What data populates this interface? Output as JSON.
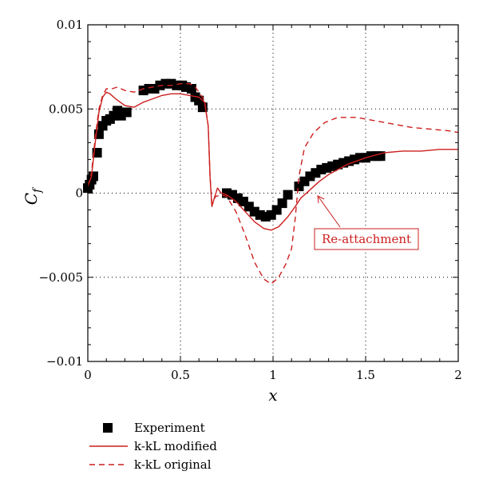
{
  "chart_data": {
    "type": "line",
    "xlabel": "x",
    "ylabel": "C",
    "ylabel_sub": "f",
    "xlim": [
      0,
      2
    ],
    "ylim": [
      -0.01,
      0.01
    ],
    "x_ticks": [
      0,
      0.5,
      1,
      1.5,
      2
    ],
    "x_tick_labels": [
      "0",
      "0.5",
      "1",
      "1.5",
      "2"
    ],
    "y_ticks": [
      -0.01,
      -0.005,
      0,
      0.005,
      0.01
    ],
    "y_tick_labels": [
      "−0.01",
      "−0.005",
      "0",
      "0.005",
      "0.01"
    ],
    "grid": "dotted at x = 0.5, 1, 1.5 and y = −0.005, 0, 0.005",
    "annotation": {
      "text": "Re-attachment",
      "x": 1.22,
      "y": -0.0003,
      "color": "#cc1f1f"
    },
    "legend": {
      "placement": "below-left",
      "items": [
        {
          "label": "Experiment",
          "style": "square-marker",
          "color": "#000000"
        },
        {
          "label": "k-kL modified",
          "style": "solid",
          "color": "#cc1f1f"
        },
        {
          "label": "k-kL original",
          "style": "dashed",
          "color": "#cc1f1f"
        }
      ]
    },
    "series": [
      {
        "name": "Experiment",
        "color": "#000000",
        "points": [
          [
            0.0,
            0.0003
          ],
          [
            0.01,
            0.0005
          ],
          [
            0.02,
            0.0008
          ],
          [
            0.03,
            0.001
          ],
          [
            0.05,
            0.0024
          ],
          [
            0.06,
            0.0035
          ],
          [
            0.08,
            0.004
          ],
          [
            0.1,
            0.0043
          ],
          [
            0.12,
            0.0044
          ],
          [
            0.14,
            0.0046
          ],
          [
            0.16,
            0.0049
          ],
          [
            0.18,
            0.0046
          ],
          [
            0.21,
            0.0048
          ],
          [
            0.3,
            0.0061
          ],
          [
            0.33,
            0.0062
          ],
          [
            0.36,
            0.0062
          ],
          [
            0.39,
            0.0064
          ],
          [
            0.42,
            0.0065
          ],
          [
            0.45,
            0.0065
          ],
          [
            0.48,
            0.0064
          ],
          [
            0.51,
            0.0064
          ],
          [
            0.53,
            0.0063
          ],
          [
            0.56,
            0.0062
          ],
          [
            0.58,
            0.0057
          ],
          [
            0.6,
            0.0055
          ],
          [
            0.62,
            0.0051
          ],
          [
            0.75,
            0.0
          ],
          [
            0.78,
            -0.0001
          ],
          [
            0.81,
            -0.0003
          ],
          [
            0.84,
            -0.0005
          ],
          [
            0.87,
            -0.0008
          ],
          [
            0.9,
            -0.0011
          ],
          [
            0.93,
            -0.0013
          ],
          [
            0.96,
            -0.0014
          ],
          [
            0.99,
            -0.0013
          ],
          [
            1.02,
            -0.001
          ],
          [
            1.05,
            -0.0006
          ],
          [
            1.08,
            -0.0001
          ],
          [
            1.14,
            0.0004
          ],
          [
            1.17,
            0.0007
          ],
          [
            1.2,
            0.001
          ],
          [
            1.23,
            0.0012
          ],
          [
            1.26,
            0.0014
          ],
          [
            1.29,
            0.0015
          ],
          [
            1.32,
            0.0016
          ],
          [
            1.35,
            0.0017
          ],
          [
            1.38,
            0.0018
          ],
          [
            1.41,
            0.0019
          ],
          [
            1.44,
            0.002
          ],
          [
            1.47,
            0.0021
          ],
          [
            1.5,
            0.0021
          ],
          [
            1.53,
            0.0022
          ],
          [
            1.56,
            0.0022
          ],
          [
            1.58,
            0.0022
          ]
        ]
      },
      {
        "name": "k-kL modified",
        "color": "#cc1f1f",
        "dash": "solid",
        "points": [
          [
            0.0,
            0.0004
          ],
          [
            0.02,
            0.001
          ],
          [
            0.04,
            0.003
          ],
          [
            0.06,
            0.0048
          ],
          [
            0.08,
            0.0057
          ],
          [
            0.1,
            0.006
          ],
          [
            0.12,
            0.0059
          ],
          [
            0.15,
            0.0056
          ],
          [
            0.2,
            0.0052
          ],
          [
            0.25,
            0.0051
          ],
          [
            0.3,
            0.0054
          ],
          [
            0.35,
            0.0056
          ],
          [
            0.4,
            0.0058
          ],
          [
            0.45,
            0.0059
          ],
          [
            0.5,
            0.0059
          ],
          [
            0.55,
            0.0058
          ],
          [
            0.6,
            0.0057
          ],
          [
            0.63,
            0.0054
          ],
          [
            0.65,
            0.004
          ],
          [
            0.66,
            0.001
          ],
          [
            0.67,
            -0.0008
          ],
          [
            0.68,
            -0.0004
          ],
          [
            0.7,
            0.0003
          ],
          [
            0.72,
            0.0
          ],
          [
            0.75,
            -0.0001
          ],
          [
            0.8,
            -0.0005
          ],
          [
            0.85,
            -0.0011
          ],
          [
            0.9,
            -0.0017
          ],
          [
            0.95,
            -0.0021
          ],
          [
            0.99,
            -0.0022
          ],
          [
            1.03,
            -0.002
          ],
          [
            1.08,
            -0.0014
          ],
          [
            1.12,
            -0.0008
          ],
          [
            1.15,
            -0.0003
          ],
          [
            1.2,
            0.0002
          ],
          [
            1.25,
            0.0007
          ],
          [
            1.3,
            0.0011
          ],
          [
            1.4,
            0.0017
          ],
          [
            1.5,
            0.0021
          ],
          [
            1.6,
            0.0024
          ],
          [
            1.7,
            0.0025
          ],
          [
            1.8,
            0.0025
          ],
          [
            1.9,
            0.0026
          ],
          [
            2.0,
            0.0026
          ]
        ]
      },
      {
        "name": "k-kL original",
        "color": "#cc1f1f",
        "dash": "dashed",
        "points": [
          [
            0.0,
            0.0004
          ],
          [
            0.02,
            0.0012
          ],
          [
            0.04,
            0.0033
          ],
          [
            0.06,
            0.005
          ],
          [
            0.08,
            0.0058
          ],
          [
            0.1,
            0.0062
          ],
          [
            0.13,
            0.0062
          ],
          [
            0.16,
            0.0063
          ],
          [
            0.2,
            0.0061
          ],
          [
            0.25,
            0.006
          ],
          [
            0.3,
            0.0062
          ],
          [
            0.35,
            0.0063
          ],
          [
            0.4,
            0.0064
          ],
          [
            0.45,
            0.0064
          ],
          [
            0.5,
            0.0065
          ],
          [
            0.55,
            0.0065
          ],
          [
            0.58,
            0.0063
          ],
          [
            0.6,
            0.006
          ],
          [
            0.63,
            0.0055
          ],
          [
            0.65,
            0.004
          ],
          [
            0.66,
            0.001
          ],
          [
            0.67,
            -0.0006
          ],
          [
            0.69,
            -0.0002
          ],
          [
            0.72,
            -0.0001
          ],
          [
            0.75,
            -0.0002
          ],
          [
            0.8,
            -0.0011
          ],
          [
            0.85,
            -0.0025
          ],
          [
            0.9,
            -0.0041
          ],
          [
            0.95,
            -0.0051
          ],
          [
            0.99,
            -0.0054
          ],
          [
            1.03,
            -0.005
          ],
          [
            1.07,
            -0.0042
          ],
          [
            1.1,
            -0.0033
          ],
          [
            1.12,
            -0.0015
          ],
          [
            1.14,
            0.001
          ],
          [
            1.17,
            0.0027
          ],
          [
            1.22,
            0.0036
          ],
          [
            1.28,
            0.0042
          ],
          [
            1.35,
            0.0045
          ],
          [
            1.45,
            0.0045
          ],
          [
            1.55,
            0.0043
          ],
          [
            1.65,
            0.0041
          ],
          [
            1.75,
            0.0039
          ],
          [
            1.85,
            0.0038
          ],
          [
            1.95,
            0.0037
          ],
          [
            2.0,
            0.0036
          ]
        ]
      }
    ]
  }
}
